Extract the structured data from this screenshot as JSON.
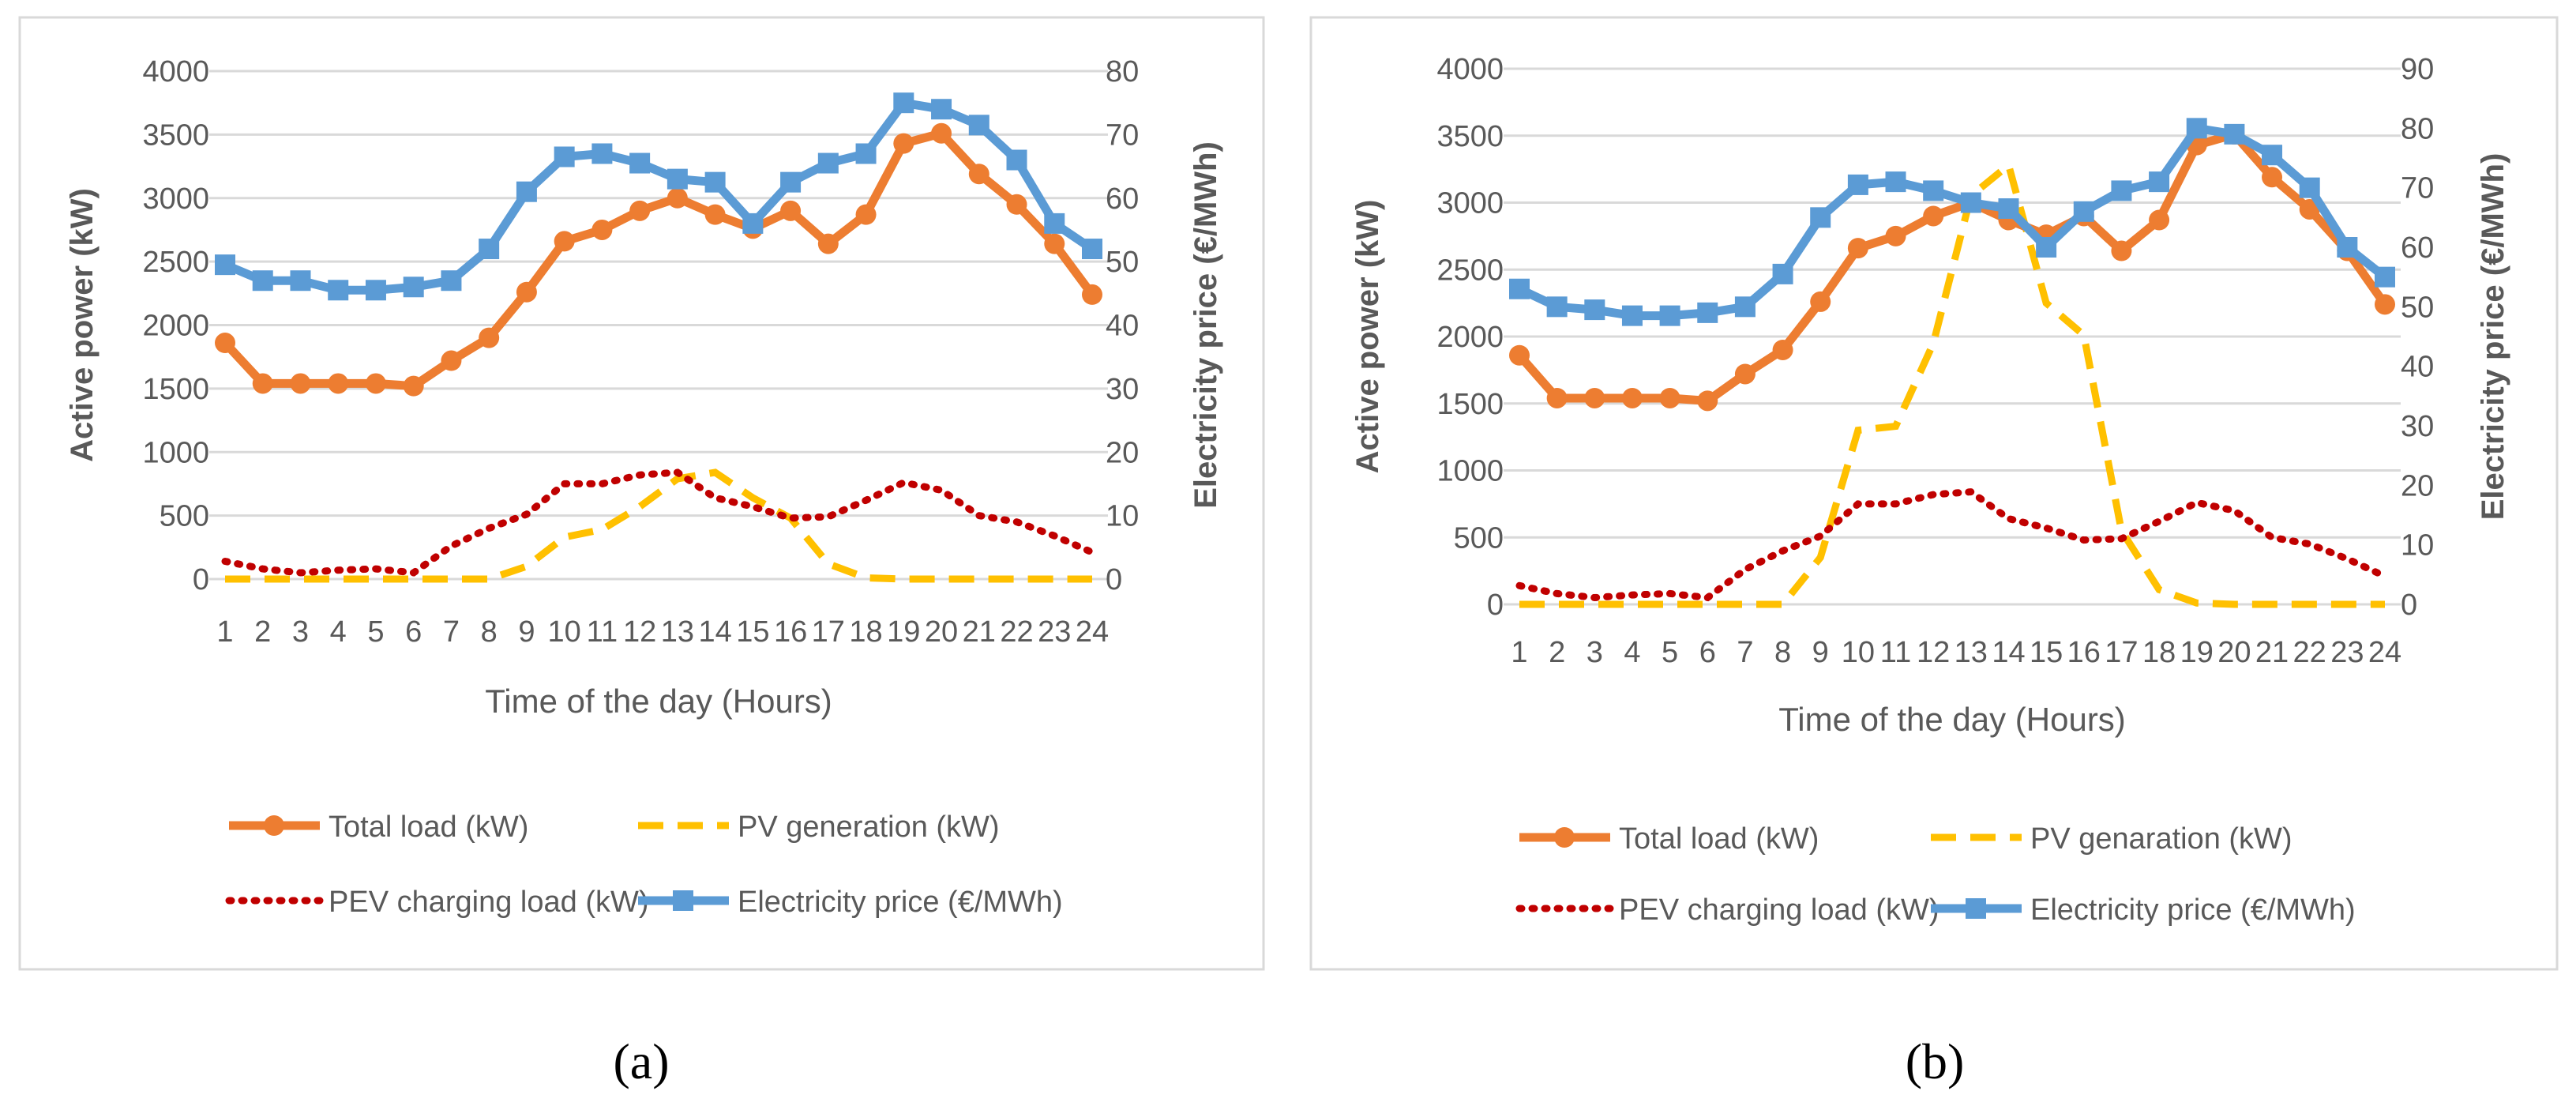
{
  "colors": {
    "total_load": "#ED7D31",
    "pv": "#FFC000",
    "pev": "#C00000",
    "price": "#5B9BD5",
    "grid": "#D9D9D9",
    "axis_text": "#595959",
    "frame": "#D9D9D9"
  },
  "chart_data": [
    {
      "type": "line",
      "panel_label": "(a)",
      "xlabel": "Time of the day (Hours)",
      "ylabel": "Active power (kW)",
      "y2label": "Electricity price (€/MWh)",
      "categories": [
        "1",
        "2",
        "3",
        "4",
        "5",
        "6",
        "7",
        "8",
        "9",
        "10",
        "11",
        "12",
        "13",
        "14",
        "15",
        "16",
        "17",
        "18",
        "19",
        "20",
        "21",
        "22",
        "23",
        "24"
      ],
      "ylim": [
        0,
        4000
      ],
      "yticks": [
        0,
        500,
        1000,
        1500,
        2000,
        2500,
        3000,
        3500,
        4000
      ],
      "y2lim": [
        0,
        80
      ],
      "y2ticks": [
        0,
        10,
        20,
        30,
        40,
        50,
        60,
        70,
        80
      ],
      "series": [
        {
          "name": "Total load (kW)",
          "axis": "left",
          "style": "line-circle",
          "color_key": "total_load",
          "values": [
            1860,
            1540,
            1540,
            1540,
            1540,
            1520,
            1720,
            1900,
            2260,
            2660,
            2750,
            2900,
            3000,
            2870,
            2760,
            2900,
            2640,
            2870,
            3430,
            3510,
            3190,
            2950,
            2640,
            2240
          ]
        },
        {
          "name": "PV generation (kW)",
          "axis": "left",
          "style": "dashed",
          "color_key": "pv",
          "values": [
            0,
            0,
            0,
            0,
            0,
            0,
            0,
            0,
            100,
            330,
            390,
            570,
            790,
            840,
            640,
            480,
            120,
            10,
            0,
            0,
            0,
            0,
            0,
            0
          ]
        },
        {
          "name": "PEV charging load (kW)",
          "axis": "left",
          "style": "dotted",
          "color_key": "pev",
          "values": [
            140,
            80,
            50,
            70,
            80,
            50,
            260,
            400,
            510,
            750,
            750,
            820,
            840,
            640,
            570,
            480,
            490,
            620,
            760,
            700,
            500,
            450,
            340,
            210
          ]
        },
        {
          "name": "Electricity price (€/MWh)",
          "axis": "right",
          "style": "line-square",
          "color_key": "price",
          "values": [
            49.5,
            47,
            47,
            45.5,
            45.5,
            46,
            47,
            52,
            61,
            66.5,
            67,
            65.5,
            63,
            62.5,
            56,
            62.5,
            65.5,
            67,
            75,
            74,
            71.5,
            66,
            56,
            52
          ]
        }
      ],
      "legend": [
        {
          "label": "Total load (kW)",
          "series": 0
        },
        {
          "label": "PV generation (kW)",
          "series": 1
        },
        {
          "label": "PEV charging load (kW)",
          "series": 2
        },
        {
          "label": "Electricity price (€/MWh)",
          "series": 3
        }
      ]
    },
    {
      "type": "line",
      "panel_label": "(b)",
      "xlabel": "Time of the day (Hours)",
      "ylabel": "Active power (kW)",
      "y2label": "Electricity price (€/MWh)",
      "categories": [
        "1",
        "2",
        "3",
        "4",
        "5",
        "6",
        "7",
        "8",
        "9",
        "10",
        "11",
        "12",
        "13",
        "14",
        "15",
        "16",
        "17",
        "18",
        "19",
        "20",
        "21",
        "22",
        "23",
        "24"
      ],
      "ylim": [
        0,
        4000
      ],
      "yticks": [
        0,
        500,
        1000,
        1500,
        2000,
        2500,
        3000,
        3500,
        4000
      ],
      "y2lim": [
        0,
        90
      ],
      "y2ticks": [
        0,
        10,
        20,
        30,
        40,
        50,
        60,
        70,
        80,
        90
      ],
      "series": [
        {
          "name": "Total load (kW)",
          "axis": "left",
          "style": "line-circle",
          "color_key": "total_load",
          "values": [
            1860,
            1540,
            1540,
            1540,
            1540,
            1520,
            1720,
            1900,
            2260,
            2660,
            2750,
            2900,
            3000,
            2870,
            2760,
            2900,
            2640,
            2870,
            3430,
            3510,
            3190,
            2950,
            2640,
            2240
          ]
        },
        {
          "name": "PV genaration (kW)",
          "axis": "left",
          "style": "dashed",
          "color_key": "pv",
          "values": [
            0,
            0,
            0,
            0,
            0,
            0,
            0,
            0,
            350,
            1300,
            1330,
            1950,
            3050,
            3280,
            2250,
            2010,
            550,
            110,
            10,
            0,
            0,
            0,
            0,
            0
          ]
        },
        {
          "name": "PEV charging load (kW)",
          "axis": "left",
          "style": "dotted",
          "color_key": "pev",
          "values": [
            140,
            80,
            50,
            70,
            80,
            50,
            260,
            400,
            510,
            750,
            750,
            820,
            840,
            640,
            570,
            480,
            490,
            620,
            760,
            700,
            500,
            450,
            340,
            210
          ]
        },
        {
          "name": "Electricity price (€/MWh)",
          "axis": "right",
          "style": "line-square",
          "color_key": "price",
          "values": [
            53,
            50,
            49.5,
            48.5,
            48.5,
            49,
            50,
            55.5,
            65,
            70.5,
            71,
            69.5,
            67.5,
            66.5,
            60,
            66,
            69.5,
            71,
            80,
            79,
            75.5,
            70,
            60,
            55
          ]
        }
      ],
      "legend": [
        {
          "label": "Total load (kW)",
          "series": 0
        },
        {
          "label": "PV genaration (kW)",
          "series": 1
        },
        {
          "label": "PEV charging load (kW)",
          "series": 2
        },
        {
          "label": "Electricity price (€/MWh)",
          "series": 3
        }
      ]
    }
  ]
}
